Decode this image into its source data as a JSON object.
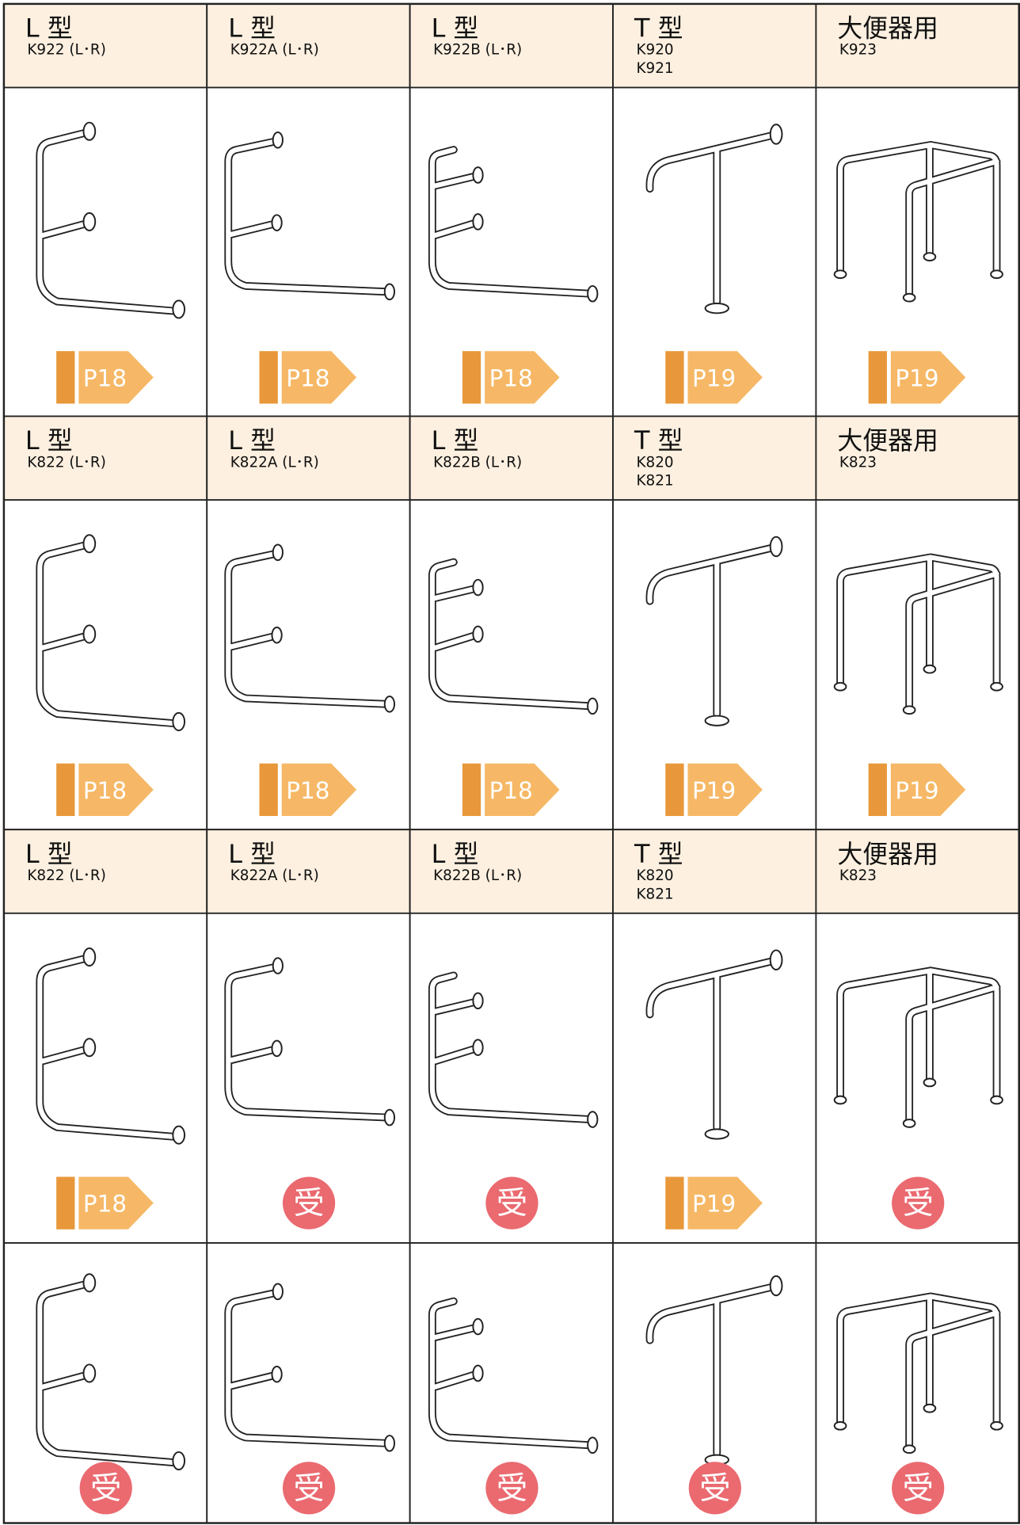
{
  "grid": {
    "rows": [
      {
        "cells": [
          {
            "title": "L 型",
            "codes": [
              "K922 (L･R)"
            ],
            "badge": "P18"
          },
          {
            "title": "L 型",
            "codes": [
              "K922A (L･R)"
            ],
            "badge": "P18"
          },
          {
            "title": "L 型",
            "codes": [
              "K922B (L･R)"
            ],
            "badge": "P18"
          },
          {
            "title": "T 型",
            "codes": [
              "K920",
              "K921"
            ],
            "badge": "P19"
          },
          {
            "title": "大便器用",
            "codes": [
              "K923"
            ],
            "badge": "P19"
          }
        ]
      },
      {
        "cells": [
          {
            "title": "L 型",
            "codes": [
              "K822 (L･R)"
            ],
            "badge": "P18"
          },
          {
            "title": "L 型",
            "codes": [
              "K822A (L･R)"
            ],
            "badge": "P18"
          },
          {
            "title": "L 型",
            "codes": [
              "K822B (L･R)"
            ],
            "badge": "P18"
          },
          {
            "title": "T 型",
            "codes": [
              "K820",
              "K821"
            ],
            "badge": "P19"
          },
          {
            "title": "大便器用",
            "codes": [
              "K823"
            ],
            "badge": "P19"
          }
        ]
      },
      {
        "cells": [
          {
            "title": "L 型",
            "codes": [
              "K822 (L･R)"
            ],
            "badge": "P18"
          },
          {
            "title": "L 型",
            "codes": [
              "K822A (L･R)"
            ],
            "badge": "受"
          },
          {
            "title": "L 型",
            "codes": [
              "K822B (L･R)"
            ],
            "badge": "受"
          },
          {
            "title": "T 型",
            "codes": [
              "K820",
              "K821"
            ],
            "badge": "P19"
          },
          {
            "title": "大便器用",
            "codes": [
              "K823"
            ],
            "badge": "受"
          }
        ]
      },
      {
        "cells": [
          {
            "badge": "受"
          },
          {
            "badge": "受"
          },
          {
            "badge": "受"
          },
          {
            "badge": "受"
          },
          {
            "badge": "受"
          }
        ]
      }
    ]
  }
}
